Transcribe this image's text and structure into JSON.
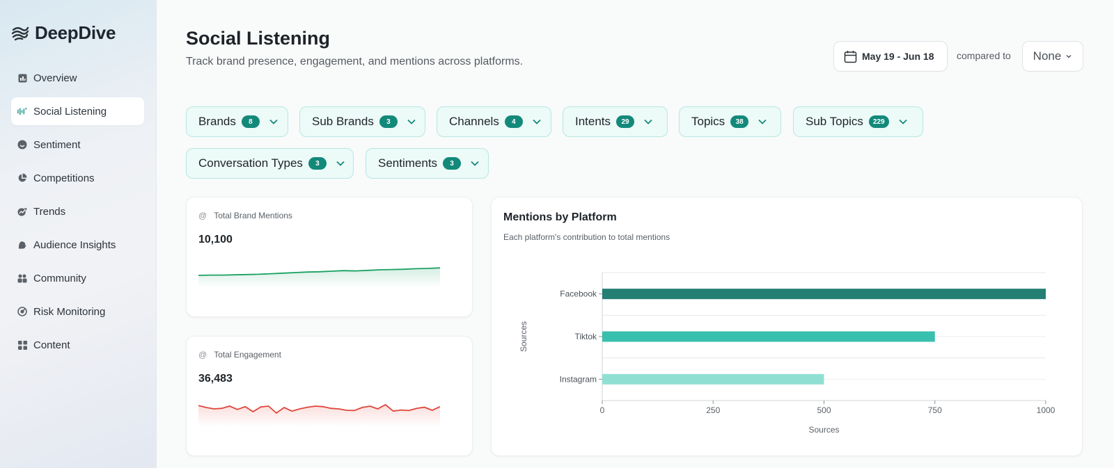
{
  "app": {
    "name": "DeepDive"
  },
  "sidebar": {
    "items": [
      {
        "label": "Overview",
        "icon": "overview-icon",
        "active": false
      },
      {
        "label": "Social Listening",
        "icon": "social-listening-icon",
        "active": true
      },
      {
        "label": "Sentiment",
        "icon": "sentiment-icon",
        "active": false
      },
      {
        "label": "Competitions",
        "icon": "pie-chart-icon",
        "active": false
      },
      {
        "label": "Trends",
        "icon": "trends-icon",
        "active": false
      },
      {
        "label": "Audience Insights",
        "icon": "audience-icon",
        "active": false
      },
      {
        "label": "Community",
        "icon": "community-icon",
        "active": false
      },
      {
        "label": "Risk Monitoring",
        "icon": "risk-icon",
        "active": false
      },
      {
        "label": "Content",
        "icon": "grid-icon",
        "active": false
      }
    ]
  },
  "header": {
    "title": "Social Listening",
    "subtitle": "Track brand presence, engagement, and mentions across platforms.",
    "date_range": "May 19 - Jun 18",
    "compared_to_label": "compared to",
    "compared_to_value": "None"
  },
  "filters": [
    {
      "label": "Brands",
      "count": "8"
    },
    {
      "label": "Sub Brands",
      "count": "3"
    },
    {
      "label": "Channels",
      "count": "4"
    },
    {
      "label": "Intents",
      "count": "29"
    },
    {
      "label": "Topics",
      "count": "38"
    },
    {
      "label": "Sub Topics",
      "count": "229"
    },
    {
      "label": "Conversation Types",
      "count": "3"
    },
    {
      "label": "Sentiments",
      "count": "3"
    }
  ],
  "stats": {
    "mentions": {
      "label": "Total Brand Mentions",
      "value": "10,100",
      "color": "#1aa160",
      "trend": [
        0.3,
        0.31,
        0.31,
        0.32,
        0.33,
        0.34,
        0.36,
        0.38,
        0.4,
        0.42,
        0.43,
        0.45,
        0.47,
        0.46,
        0.48,
        0.5,
        0.51,
        0.52,
        0.54,
        0.55,
        0.57
      ]
    },
    "engagement": {
      "label": "Total Engagement",
      "value": "36,483",
      "color": "#e0453a",
      "trend": [
        0.62,
        0.55,
        0.5,
        0.52,
        0.6,
        0.48,
        0.58,
        0.4,
        0.57,
        0.6,
        0.35,
        0.55,
        0.42,
        0.5,
        0.56,
        0.6,
        0.58,
        0.52,
        0.5,
        0.45,
        0.44,
        0.55,
        0.6,
        0.5,
        0.65,
        0.42,
        0.46,
        0.44,
        0.52,
        0.56,
        0.45,
        0.58
      ]
    }
  },
  "chart_data": {
    "type": "bar",
    "orientation": "horizontal",
    "title": "Mentions by Platform",
    "subtitle": "Each platform's contribution to total mentions",
    "categories": [
      "Facebook",
      "Tiktok",
      "Instagram"
    ],
    "values": [
      1000,
      750,
      500
    ],
    "colors": [
      "#237f73",
      "#39bfae",
      "#8fe0d3"
    ],
    "xlabel": "Sources",
    "ylabel": "Sources",
    "xlim": [
      0,
      1000
    ],
    "xticks": [
      "0",
      "250",
      "500",
      "750",
      "1000"
    ],
    "grid": true
  }
}
